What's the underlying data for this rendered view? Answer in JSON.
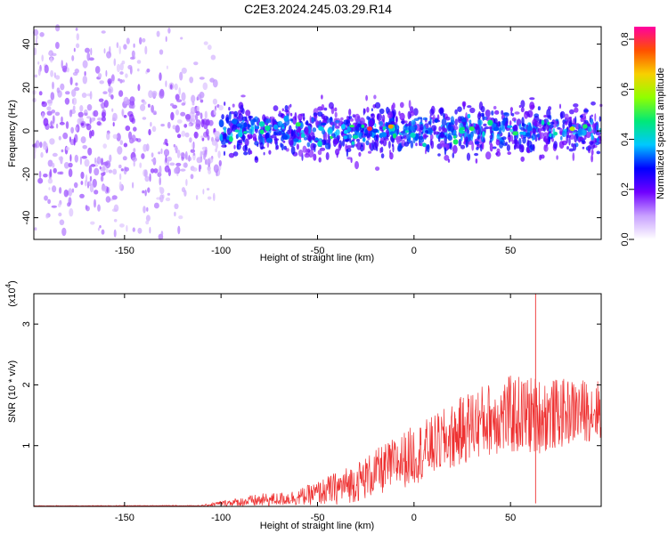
{
  "figure": {
    "title": "C2E3.2024.245.03.29.R14"
  },
  "chart_data": [
    {
      "type": "heatmap",
      "title": "C2E3.2024.245.03.29.R14",
      "xlabel": "Height of straight line (km)",
      "ylabel": "Frequency (Hz)",
      "xlim": [
        -197,
        97
      ],
      "ylim": [
        -50,
        48
      ],
      "xticks": [
        -150,
        -100,
        -50,
        0,
        50
      ],
      "yticks": [
        -40,
        -20,
        0,
        20,
        40
      ],
      "colorbar": {
        "label": "Normalized spectral amplitude",
        "range": [
          0.0,
          0.85
        ],
        "ticks": [
          0.0,
          0.2,
          0.4,
          0.6,
          0.8
        ],
        "colors": [
          "#ffffff",
          "#c8a0ff",
          "#7000ff",
          "#0000ff",
          "#00c8ff",
          "#00e878",
          "#90ff00",
          "#f8d000",
          "#ff5000",
          "#ff00a0"
        ]
      },
      "bands": [
        {
          "x": [
            -197,
            -120
          ],
          "y_center": 0,
          "y_half_width": 48,
          "amplitude": [
            0.05,
            0.15
          ]
        },
        {
          "x": [
            -120,
            -100
          ],
          "y_center": 0,
          "y_half_width": 25,
          "amplitude": [
            0.05,
            0.15
          ]
        },
        {
          "x": [
            -100,
            97
          ],
          "y_center": 0,
          "y_half_width": 10,
          "amplitude": [
            0.15,
            0.35
          ]
        }
      ],
      "peaks": [
        {
          "x": -23,
          "y": 1,
          "amplitude": 0.8
        },
        {
          "x": -12,
          "y": 2,
          "amplitude": 0.7
        },
        {
          "x": 82,
          "y": 1,
          "amplitude": 0.6
        },
        {
          "x": -60,
          "y": 3,
          "amplitude": 0.5
        },
        {
          "x": 30,
          "y": 1,
          "amplitude": 0.5
        }
      ]
    },
    {
      "type": "line",
      "xlabel": "Height of straight line (km)",
      "ylabel": "SNR (10 * v/v)",
      "yscale_label": "(x10",
      "yscale_exp": "4",
      "xlim": [
        -197,
        97
      ],
      "ylim": [
        0,
        3.5
      ],
      "xticks": [
        -150,
        -100,
        -50,
        0,
        50
      ],
      "yticks": [
        1,
        2,
        3
      ],
      "color": "#ee3030",
      "envelope": {
        "x": [
          -197,
          -110,
          -100,
          -90,
          -80,
          -70,
          -60,
          -50,
          -40,
          -30,
          -20,
          -10,
          0,
          10,
          20,
          30,
          40,
          50,
          60,
          70,
          80,
          97
        ],
        "mean": [
          0.0,
          0.01,
          0.05,
          0.07,
          0.1,
          0.12,
          0.15,
          0.22,
          0.3,
          0.4,
          0.55,
          0.7,
          0.85,
          1.0,
          1.15,
          1.35,
          1.45,
          1.5,
          1.5,
          1.5,
          1.55,
          1.6
        ],
        "spread": [
          0.01,
          0.01,
          0.04,
          0.07,
          0.1,
          0.1,
          0.12,
          0.18,
          0.25,
          0.3,
          0.35,
          0.4,
          0.45,
          0.45,
          0.5,
          0.55,
          0.55,
          0.6,
          0.6,
          0.55,
          0.5,
          0.45
        ]
      },
      "spikes": [
        {
          "x": 63,
          "y": 3.5
        },
        {
          "x": 63,
          "y": 0.05
        }
      ]
    }
  ]
}
